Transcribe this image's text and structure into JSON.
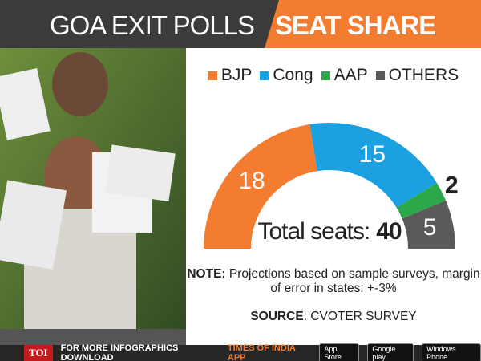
{
  "chart_data": {
    "type": "semi-donut",
    "title": "GOA EXIT POLLS",
    "subtitle": "SEAT SHARE",
    "series": [
      {
        "name": "BJP",
        "color": "#f47c30",
        "values": [
          18
        ]
      },
      {
        "name": "Cong",
        "color": "#1ba1e2",
        "values": [
          15
        ]
      },
      {
        "name": "AAP",
        "color": "#2aa84a",
        "values": [
          2
        ]
      },
      {
        "name": "OTHERS",
        "color": "#5a5a5a",
        "values": [
          5
        ]
      }
    ],
    "total_label": "Total seats:",
    "total": 40
  },
  "note_label": "NOTE:",
  "note": "Projections based on sample surveys, margin of error in states: +-3%",
  "source_label": "SOURCE",
  "source": ": CVOTER SURVEY",
  "footer": {
    "logo": "TOI",
    "text": "FOR MORE INFOGRAPHICS DOWNLOAD",
    "app": "TIMES OF INDIA APP",
    "badges": [
      "App Store",
      "Google play",
      "Windows Phone"
    ]
  }
}
